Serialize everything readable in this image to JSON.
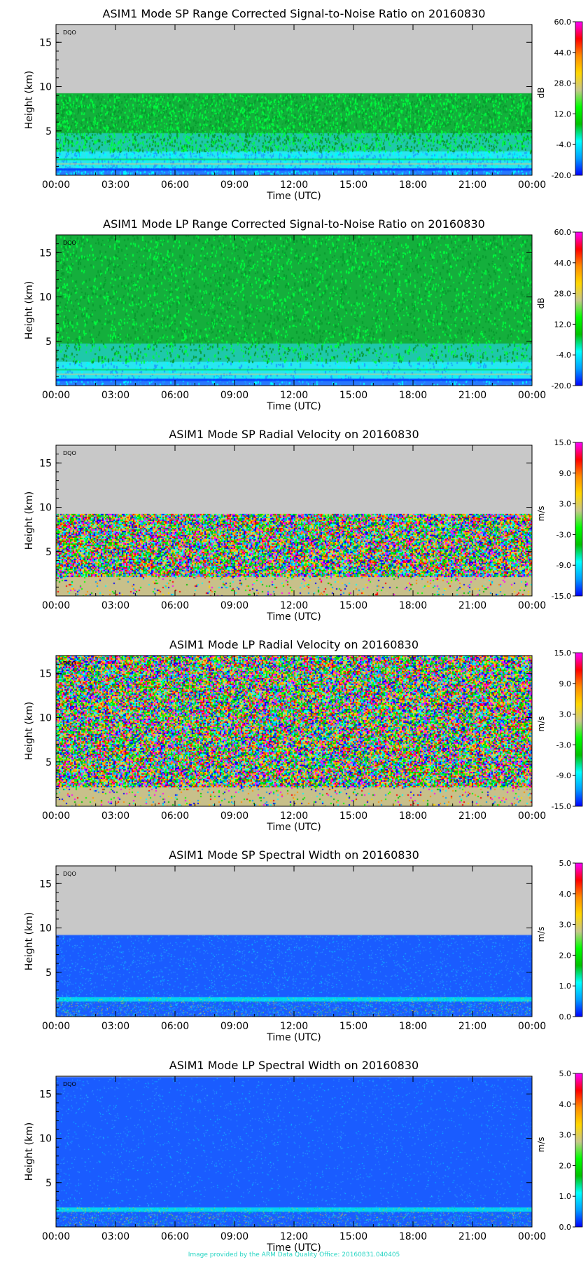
{
  "footer": "Image provided by the ARM Data Quality Office: 20160831.040405",
  "chart_data": [
    {
      "type": "heatmap",
      "title": "ASIM1 Mode SP Range Corrected Signal-to-Noise Ratio on 20160830",
      "xlabel": "Time (UTC)",
      "ylabel": "Height (km)",
      "x_ticks": [
        "00:00",
        "03:00",
        "06:00",
        "09:00",
        "12:00",
        "15:00",
        "18:00",
        "21:00",
        "00:00"
      ],
      "y_ticks": [
        5,
        10,
        15
      ],
      "ylim": [
        0,
        17
      ],
      "colorbar": {
        "label": "dB",
        "ticks": [
          "60.0",
          "44.0",
          "28.0",
          "12.0",
          "-4.0",
          "-20.0"
        ],
        "range": [
          -20,
          60
        ]
      },
      "annotation": "DQO",
      "data_top_km": 9.2,
      "pattern": "snr"
    },
    {
      "type": "heatmap",
      "title": "ASIM1 Mode LP Range Corrected Signal-to-Noise Ratio on 20160830",
      "xlabel": "Time (UTC)",
      "ylabel": "Height (km)",
      "x_ticks": [
        "00:00",
        "03:00",
        "06:00",
        "09:00",
        "12:00",
        "15:00",
        "18:00",
        "21:00",
        "00:00"
      ],
      "y_ticks": [
        5,
        10,
        15
      ],
      "ylim": [
        0,
        17
      ],
      "colorbar": {
        "label": "dB",
        "ticks": [
          "60.0",
          "44.0",
          "28.0",
          "12.0",
          "-4.0",
          "-20.0"
        ],
        "range": [
          -20,
          60
        ]
      },
      "annotation": "DQO",
      "data_top_km": 17,
      "pattern": "snr"
    },
    {
      "type": "heatmap",
      "title": "ASIM1 Mode SP Radial Velocity  on 20160830",
      "xlabel": "Time (UTC)",
      "ylabel": "Height (km)",
      "x_ticks": [
        "00:00",
        "03:00",
        "06:00",
        "09:00",
        "12:00",
        "15:00",
        "18:00",
        "21:00",
        "00:00"
      ],
      "y_ticks": [
        5,
        10,
        15
      ],
      "ylim": [
        0,
        17
      ],
      "colorbar": {
        "label": "m/s",
        "ticks": [
          "15.0",
          "9.0",
          "3.0",
          "-3.0",
          "-9.0",
          "-15.0"
        ],
        "range": [
          -15,
          15
        ]
      },
      "annotation": "DQO",
      "data_top_km": 9.2,
      "pattern": "velocity"
    },
    {
      "type": "heatmap",
      "title": "ASIM1 Mode LP Radial Velocity  on 20160830",
      "xlabel": "Time (UTC)",
      "ylabel": "Height (km)",
      "x_ticks": [
        "00:00",
        "03:00",
        "06:00",
        "09:00",
        "12:00",
        "15:00",
        "18:00",
        "21:00",
        "00:00"
      ],
      "y_ticks": [
        5,
        10,
        15
      ],
      "ylim": [
        0,
        17
      ],
      "colorbar": {
        "label": "m/s",
        "ticks": [
          "15.0",
          "9.0",
          "3.0",
          "-3.0",
          "-9.0",
          "-15.0"
        ],
        "range": [
          -15,
          15
        ]
      },
      "annotation": "DQO",
      "data_top_km": 17,
      "pattern": "velocity"
    },
    {
      "type": "heatmap",
      "title": "ASIM1 Mode SP Spectral Width  on 20160830",
      "xlabel": "Time (UTC)",
      "ylabel": "Height (km)",
      "x_ticks": [
        "00:00",
        "03:00",
        "06:00",
        "09:00",
        "12:00",
        "15:00",
        "18:00",
        "21:00",
        "00:00"
      ],
      "y_ticks": [
        5,
        10,
        15
      ],
      "ylim": [
        0,
        17
      ],
      "colorbar": {
        "label": "m/s",
        "ticks": [
          "5.0",
          "4.0",
          "3.0",
          "2.0",
          "1.0",
          "0.0"
        ],
        "range": [
          0,
          5
        ]
      },
      "annotation": "DQO",
      "data_top_km": 9.2,
      "pattern": "width"
    },
    {
      "type": "heatmap",
      "title": "ASIM1 Mode LP Spectral Width  on 20160830",
      "xlabel": "Time (UTC)",
      "ylabel": "Height (km)",
      "x_ticks": [
        "00:00",
        "03:00",
        "06:00",
        "09:00",
        "12:00",
        "15:00",
        "18:00",
        "21:00",
        "00:00"
      ],
      "y_ticks": [
        5,
        10,
        15
      ],
      "ylim": [
        0,
        17
      ],
      "colorbar": {
        "label": "m/s",
        "ticks": [
          "5.0",
          "4.0",
          "3.0",
          "2.0",
          "1.0",
          "0.0"
        ],
        "range": [
          0,
          5
        ]
      },
      "annotation": "DQO",
      "data_top_km": 16.9,
      "pattern": "width"
    }
  ]
}
